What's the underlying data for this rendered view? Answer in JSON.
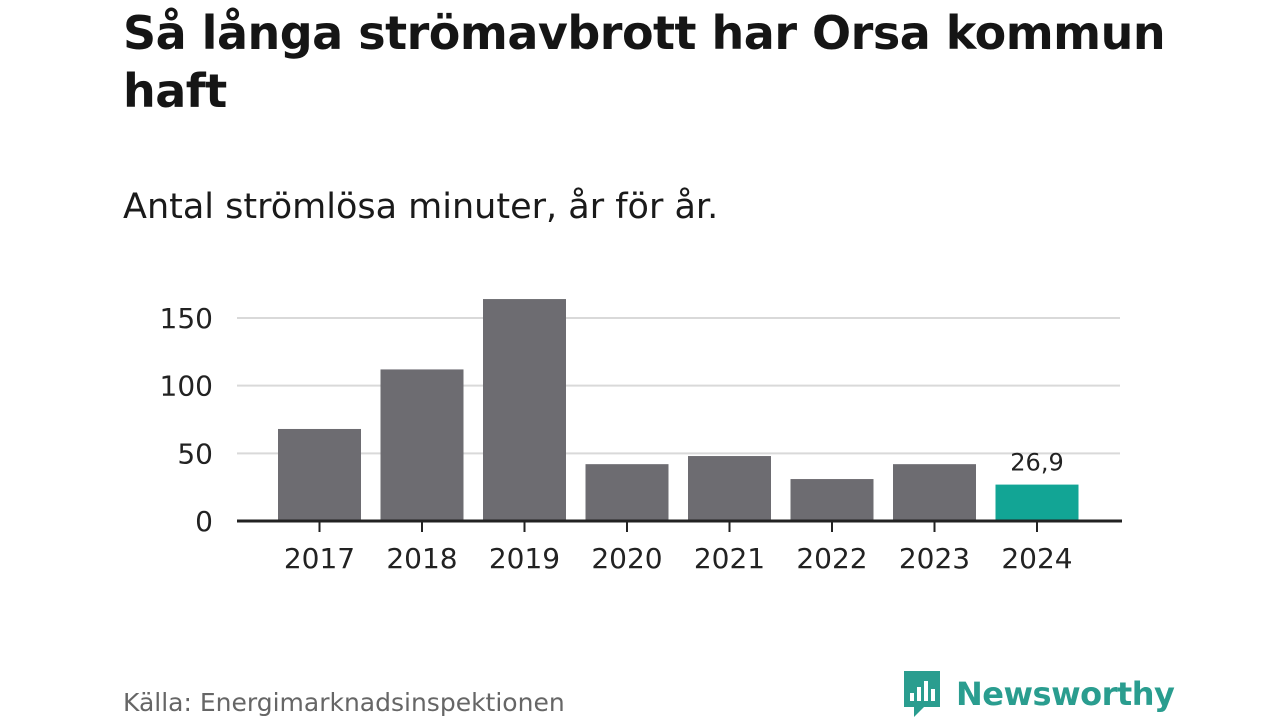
{
  "header": {
    "title": "Så långa strömavbrott har Orsa kommun haft",
    "subtitle": "Antal strömlösa minuter, år för år."
  },
  "footer": {
    "source": "Källa: Energimarknadsinspektionen",
    "brand": "Newsworthy",
    "brand_icon": "bar-chart-speech-bubble-icon"
  },
  "colors": {
    "bar": "#6d6c71",
    "highlight": "#12a595",
    "grid": "#d9d9d9",
    "axis": "#222222",
    "brand": "#2a9d8f"
  },
  "chart_data": {
    "type": "bar",
    "categories": [
      "2017",
      "2018",
      "2019",
      "2020",
      "2021",
      "2022",
      "2023",
      "2024"
    ],
    "values": [
      68,
      112,
      164,
      42,
      48,
      31,
      42,
      26.9
    ],
    "highlight_index": 7,
    "data_labels": [
      {
        "index": 7,
        "text": "26,9"
      }
    ],
    "yticks": [
      0,
      50,
      100,
      150
    ],
    "ylim": [
      0,
      165
    ],
    "grid": true,
    "xlabel": "",
    "ylabel": ""
  }
}
